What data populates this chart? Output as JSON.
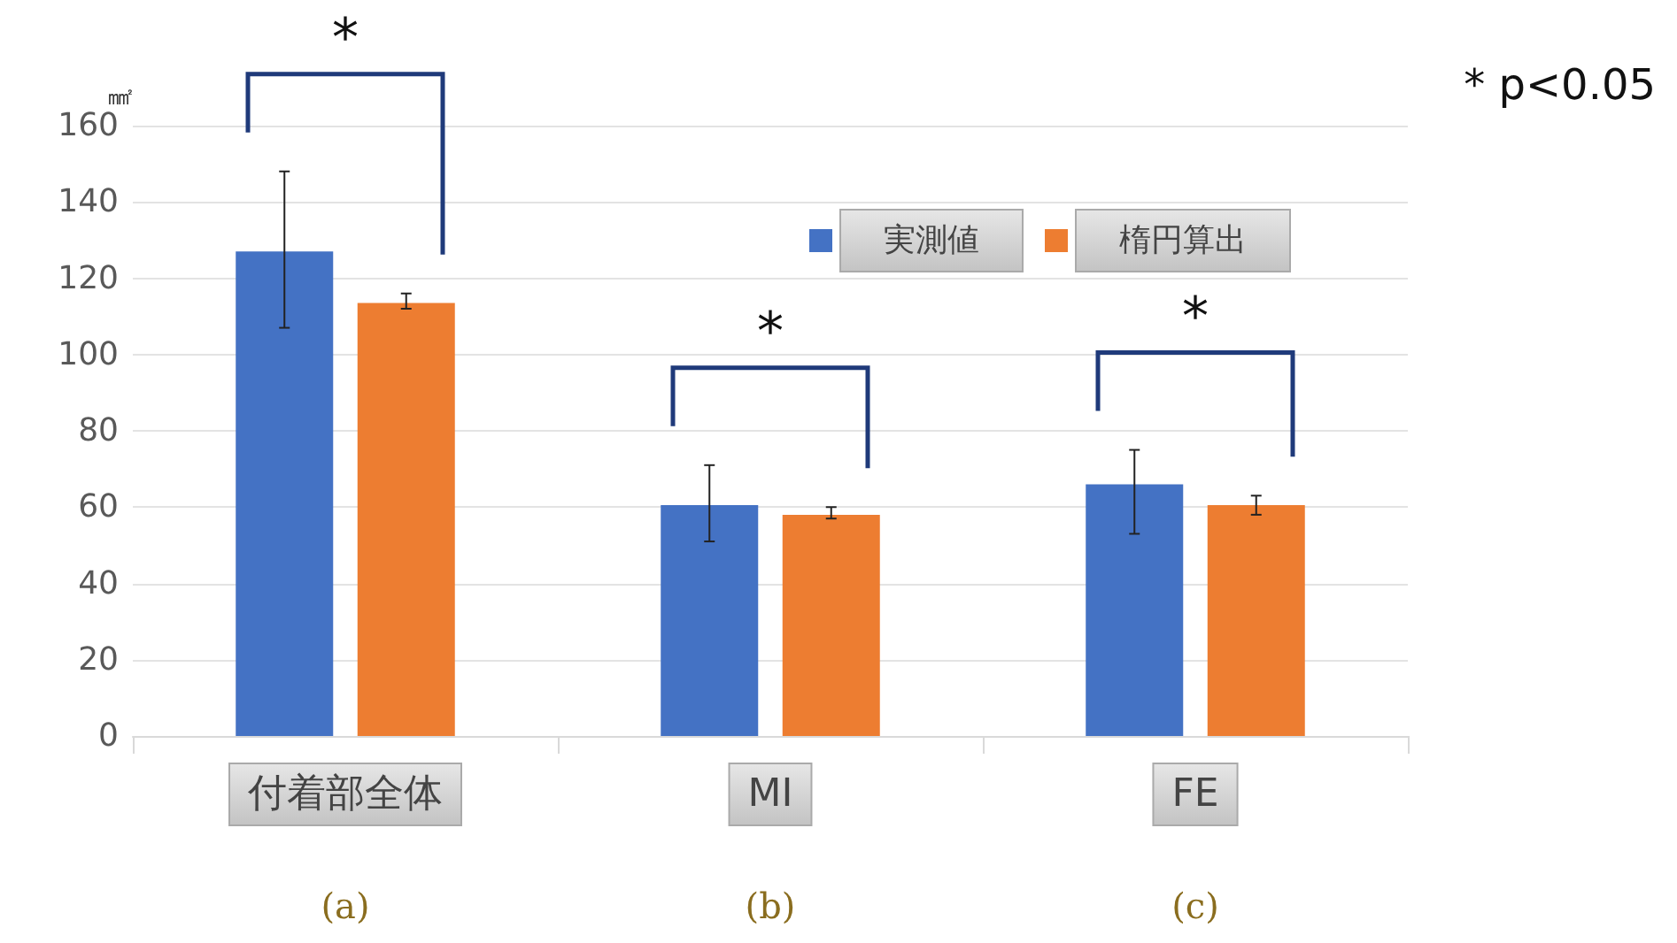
{
  "chart_data": {
    "type": "bar",
    "ylabel": "㎟",
    "categories": [
      "付着部全体",
      "MI",
      "FE"
    ],
    "series": [
      {
        "name": "実測値",
        "color": "#4472c4",
        "values": [
          127,
          60.5,
          66
        ],
        "errors": [
          [
            107,
            148
          ],
          [
            51,
            71
          ],
          [
            53,
            75
          ]
        ]
      },
      {
        "name": "楕円算出",
        "color": "#ed7d31",
        "values": [
          113.5,
          58,
          60.5
        ],
        "errors": [
          [
            112,
            116
          ],
          [
            57,
            60
          ],
          [
            58,
            63
          ]
        ]
      }
    ],
    "ylim": [
      0,
      160
    ],
    "yticks": [
      0,
      20,
      40,
      60,
      80,
      100,
      120,
      140,
      160
    ],
    "grid": "y",
    "legend": "top right",
    "annotations": [
      "*",
      "*",
      "*",
      "* p<0.05",
      "(a)",
      "(b)",
      "(c)"
    ]
  }
}
